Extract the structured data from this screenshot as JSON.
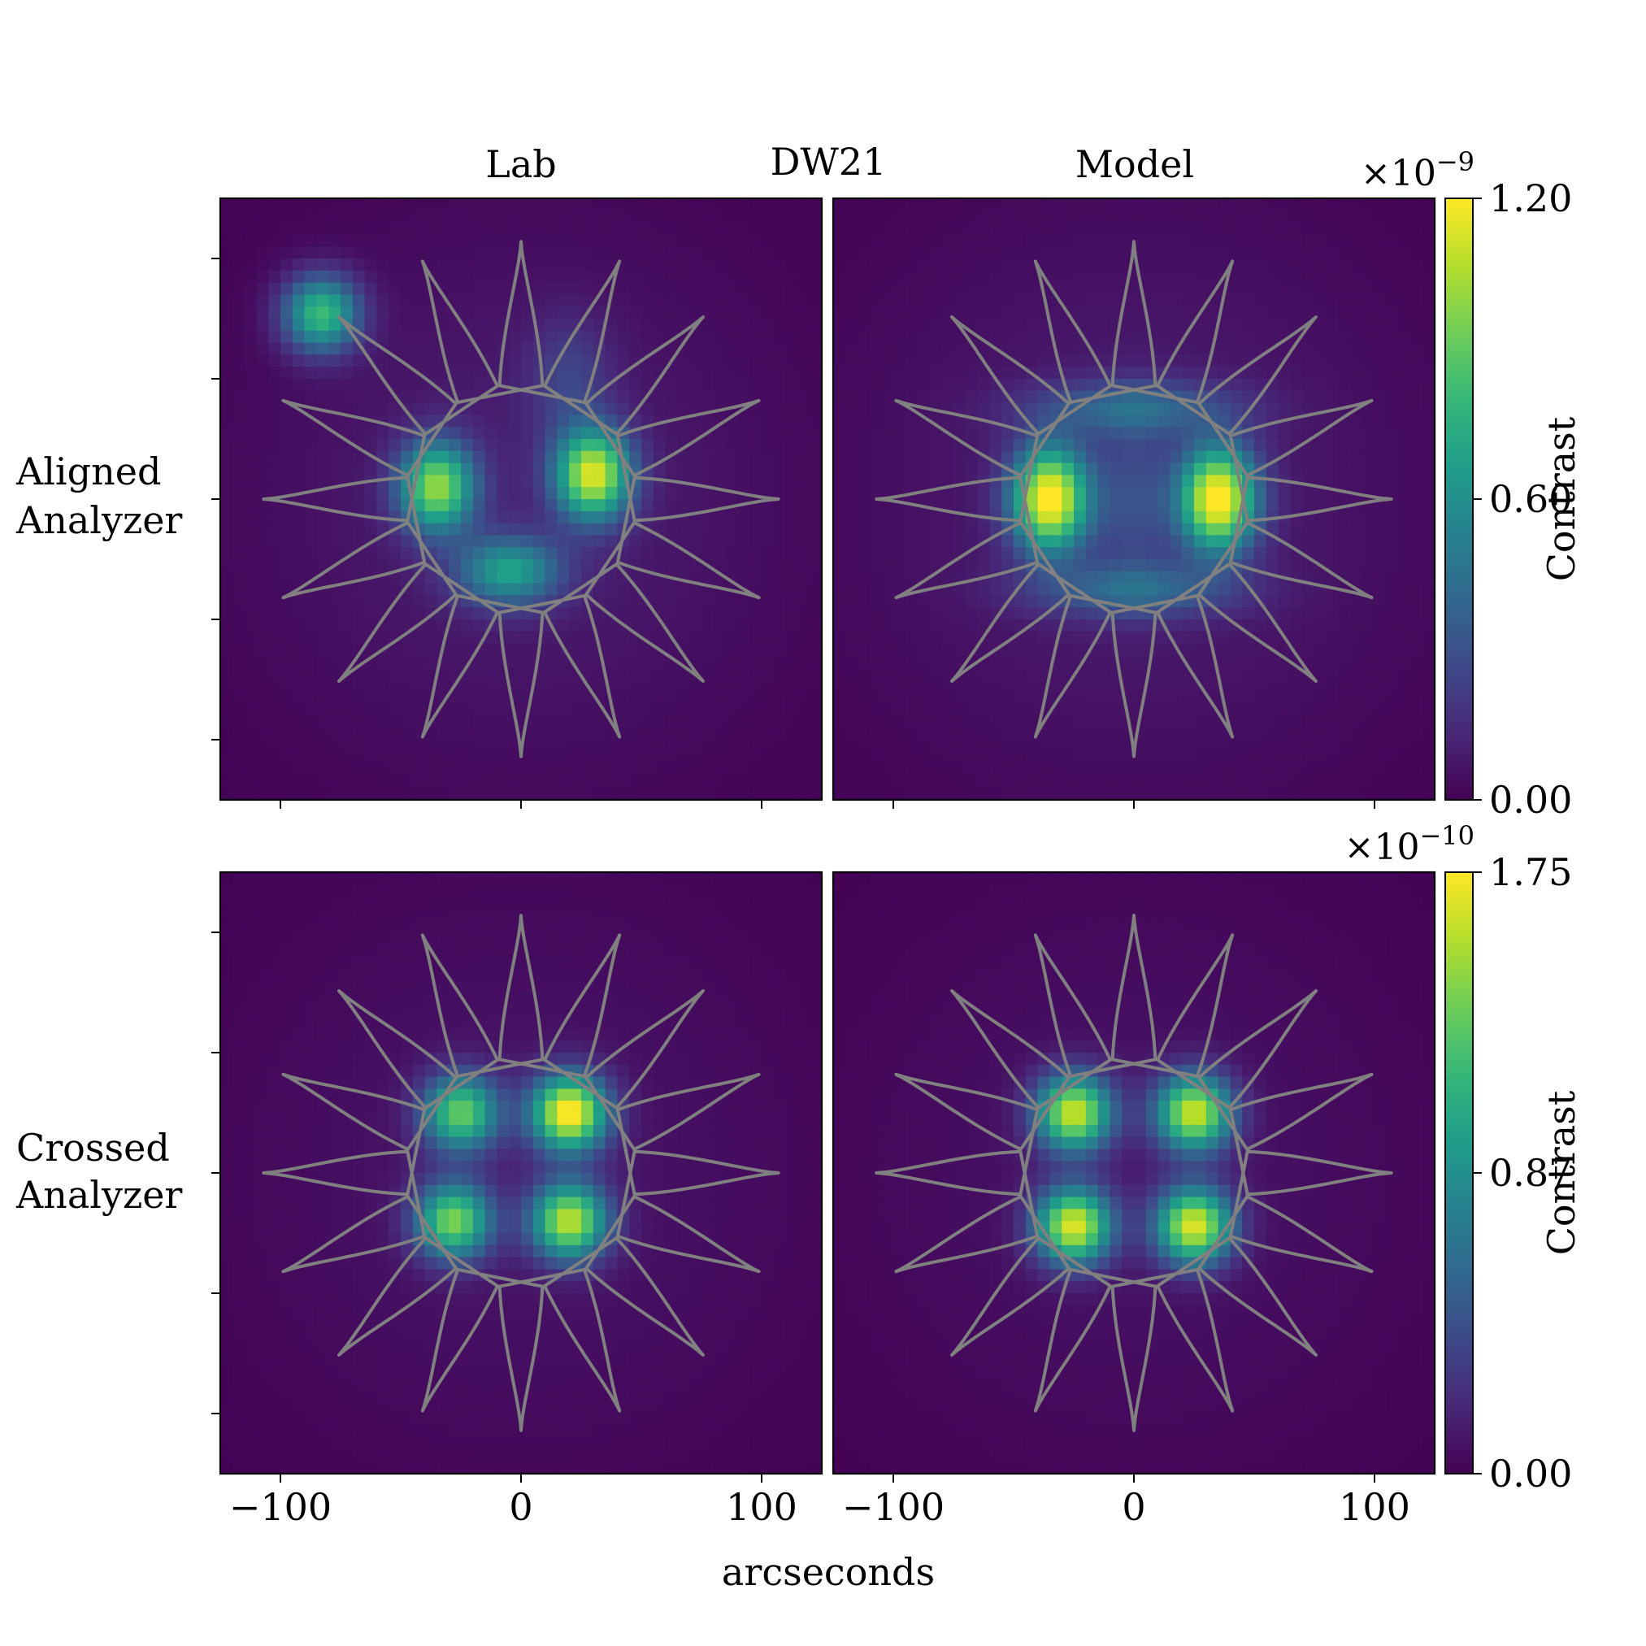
{
  "figure": {
    "suptitle": "DW21",
    "column_titles": [
      "Lab",
      "Model"
    ],
    "row_labels": [
      [
        "Aligned",
        "Analyzer"
      ],
      [
        "Crossed",
        "Analyzer"
      ]
    ],
    "xlabel": "arcseconds",
    "colorbar_label": "Contrast",
    "overlay_color": "#808080",
    "colormap": "viridis"
  },
  "chart_data": {
    "type": "heatmap",
    "xlabel": "arcseconds",
    "xlim": [
      -125,
      125
    ],
    "ylim": [
      -125,
      125
    ],
    "x_ticks": [
      -100,
      0,
      100
    ],
    "y_ticks": [
      -100,
      -50,
      0,
      50,
      100
    ],
    "x_tick_labels": [
      "−100",
      "0",
      "100"
    ],
    "grid": false,
    "pixel_size_arcsec": 5,
    "overlay": {
      "shape": "starshade",
      "petals": 16,
      "tip_radius_arcsec": 107,
      "root_radius_arcsec": 48,
      "inner_radius_arcsec": 27
    },
    "rows": [
      {
        "label": "Aligned Analyzer",
        "colorbar": {
          "min": 0.0,
          "max": 1.2,
          "ticks": [
            "0.00",
            "0.60",
            "1.20"
          ],
          "tick_values": [
            0.0,
            0.6,
            1.2
          ],
          "exponent_label": "×10",
          "exponent": "−9",
          "label": "Contrast"
        },
        "panels": [
          {
            "title": "Lab",
            "peak": 1.06,
            "spots": [
              {
                "x": -35,
                "y": 5,
                "amplitude": 0.93,
                "sigma_x": 11,
                "sigma_y": 13
              },
              {
                "x": 30,
                "y": 10,
                "amplitude": 1.06,
                "sigma_x": 11,
                "sigma_y": 13
              },
              {
                "x": -83,
                "y": 77,
                "amplitude": 0.78,
                "sigma_x": 11,
                "sigma_y": 11
              },
              {
                "x": -5,
                "y": -30,
                "amplitude": 0.6,
                "sigma_x": 15,
                "sigma_y": 10
              },
              {
                "x": 20,
                "y": 50,
                "amplitude": 0.18,
                "sigma_x": 12,
                "sigma_y": 18
              },
              {
                "x": 0,
                "y": 0,
                "amplitude": 0.1,
                "sigma_x": 80,
                "sigma_y": 80
              }
            ]
          },
          {
            "title": "Model",
            "peak": 1.2,
            "spots": [
              {
                "x": -35,
                "y": 0,
                "amplitude": 1.18,
                "sigma_x": 11,
                "sigma_y": 15
              },
              {
                "x": 35,
                "y": 0,
                "amplitude": 1.18,
                "sigma_x": 11,
                "sigma_y": 15
              },
              {
                "x": 0,
                "y": 38,
                "amplitude": 0.32,
                "sigma_x": 30,
                "sigma_y": 8
              },
              {
                "x": 0,
                "y": -38,
                "amplitude": 0.32,
                "sigma_x": 30,
                "sigma_y": 8
              },
              {
                "x": 0,
                "y": 0,
                "amplitude": 0.2,
                "sigma_x": 12,
                "sigma_y": 24
              },
              {
                "x": 0,
                "y": 0,
                "amplitude": 0.1,
                "sigma_x": 85,
                "sigma_y": 85
              }
            ]
          }
        ]
      },
      {
        "label": "Crossed Analyzer",
        "colorbar": {
          "min": 0.0,
          "max": 1.75,
          "ticks": [
            "0.00",
            "0.87",
            "1.75"
          ],
          "tick_values": [
            0.0,
            0.875,
            1.75
          ],
          "exponent_label": "×10",
          "exponent": "−10",
          "label": "Contrast"
        },
        "panels": [
          {
            "title": "Lab",
            "peak": 1.75,
            "spots": [
              {
                "x": -25,
                "y": 25,
                "amplitude": 1.25,
                "sigma_x": 11,
                "sigma_y": 11
              },
              {
                "x": 20,
                "y": 25,
                "amplitude": 1.72,
                "sigma_x": 11,
                "sigma_y": 11
              },
              {
                "x": -28,
                "y": -20,
                "amplitude": 1.32,
                "sigma_x": 11,
                "sigma_y": 11
              },
              {
                "x": 20,
                "y": -20,
                "amplitude": 1.5,
                "sigma_x": 11,
                "sigma_y": 11
              },
              {
                "x": 0,
                "y": 0,
                "amplitude": 0.1,
                "sigma_x": 85,
                "sigma_y": 85
              }
            ]
          },
          {
            "title": "Model",
            "peak": 1.62,
            "spots": [
              {
                "x": -25,
                "y": 25,
                "amplitude": 1.55,
                "sigma_x": 11,
                "sigma_y": 11
              },
              {
                "x": 25,
                "y": 25,
                "amplitude": 1.55,
                "sigma_x": 11,
                "sigma_y": 11
              },
              {
                "x": -25,
                "y": -22,
                "amplitude": 1.6,
                "sigma_x": 11,
                "sigma_y": 11
              },
              {
                "x": 25,
                "y": -22,
                "amplitude": 1.6,
                "sigma_x": 11,
                "sigma_y": 11
              },
              {
                "x": 0,
                "y": 0,
                "amplitude": 0.09,
                "sigma_x": 85,
                "sigma_y": 85
              }
            ]
          }
        ]
      }
    ]
  }
}
